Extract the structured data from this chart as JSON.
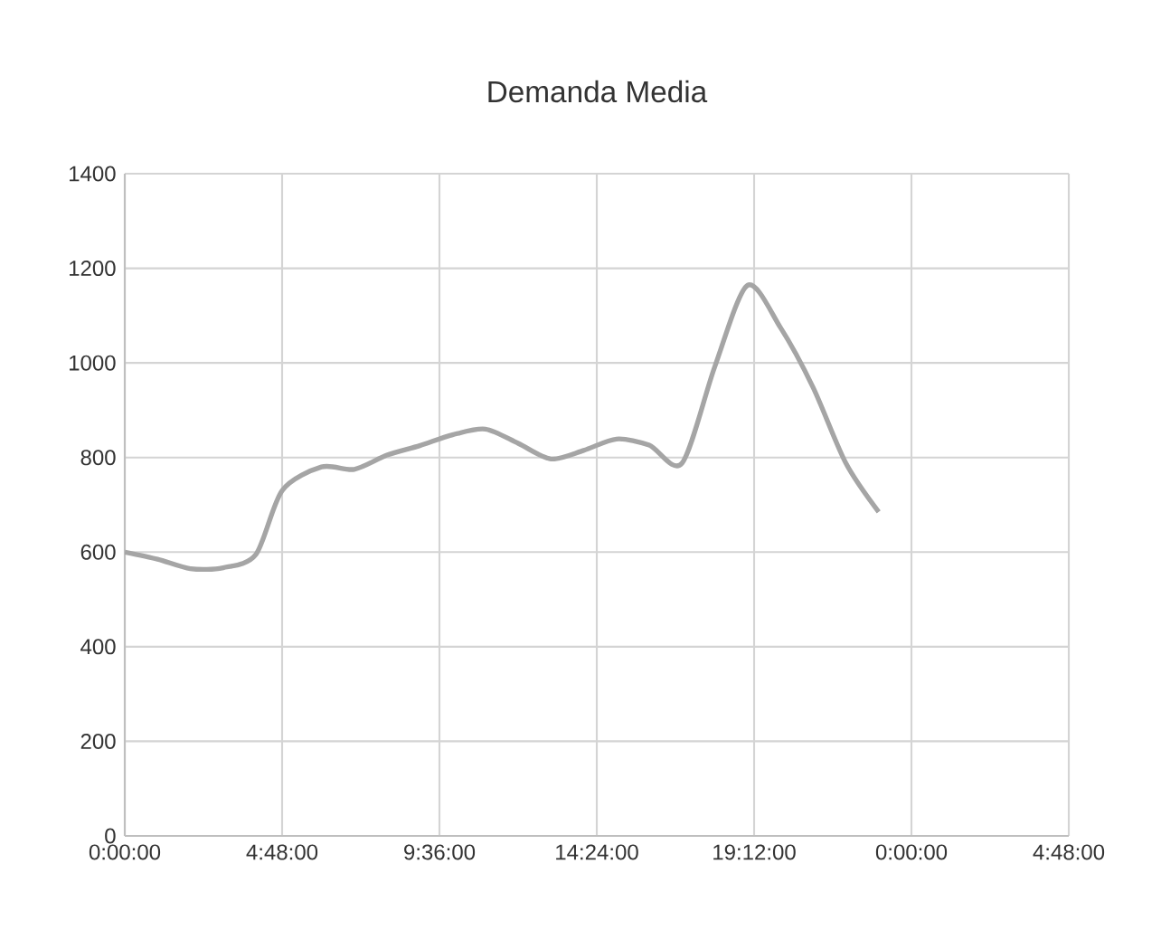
{
  "chart_data": {
    "type": "line",
    "title": "Demanda Media",
    "x": [
      "1900-01-01T00:00",
      "1900-01-01T01:00",
      "1900-01-01T02:00",
      "1900-01-01T03:00",
      "1900-01-01T04:00",
      "1900-01-01T04:48",
      "1900-01-01T06:00",
      "1900-01-01T07:00",
      "1900-01-01T08:00",
      "1900-01-01T09:00",
      "1900-01-01T10:00",
      "1900-01-01T11:00",
      "1900-01-01T12:00",
      "1900-01-01T13:00",
      "1900-01-01T14:00",
      "1900-01-01T15:00",
      "1900-01-01T16:00",
      "1900-01-01T17:00",
      "1900-01-01T18:00",
      "1900-01-01T19:00",
      "1900-01-01T20:00",
      "1900-01-01T21:00",
      "1900-01-01T22:00",
      "1900-01-01T23:00"
    ],
    "series": [
      {
        "color": "#a5a5a5",
        "values": [
          600,
          585,
          565,
          567,
          595,
          730,
          780,
          775,
          805,
          825,
          848,
          860,
          830,
          797,
          815,
          839,
          826,
          788,
          992,
          1164,
          1075,
          948,
          788,
          685
        ]
      }
    ],
    "xlim": [
      "1900-01-01T00:00",
      "1900-01-02T04:48"
    ],
    "xticks": [
      {
        "value": "1900-01-01T00:00",
        "label": "0:00:00"
      },
      {
        "value": "1900-01-01T04:48",
        "label": "4:48:00"
      },
      {
        "value": "1900-01-01T09:36",
        "label": "9:36:00"
      },
      {
        "value": "1900-01-01T14:24",
        "label": "14:24:00"
      },
      {
        "value": "1900-01-01T19:12",
        "label": "19:12:00"
      },
      {
        "value": "1900-01-02T00:00",
        "label": "0:00:00"
      },
      {
        "value": "1900-01-02T04:48",
        "label": "4:48:00"
      }
    ],
    "ylim": [
      0,
      1400
    ],
    "yticks": [
      0,
      200,
      400,
      600,
      800,
      1000,
      1200,
      1400
    ],
    "grid": true,
    "marker": "none",
    "line_style": "solid"
  }
}
